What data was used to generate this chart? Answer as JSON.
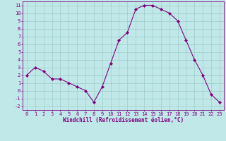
{
  "x": [
    0,
    1,
    2,
    3,
    4,
    5,
    6,
    7,
    8,
    9,
    10,
    11,
    12,
    13,
    14,
    15,
    16,
    17,
    18,
    19,
    20,
    21,
    22,
    23
  ],
  "y": [
    2,
    3,
    2.5,
    1.5,
    1.5,
    1,
    0.5,
    0,
    -1.5,
    0.5,
    3.5,
    6.5,
    7.5,
    10.5,
    11,
    11,
    10.5,
    10,
    9,
    6.5,
    4,
    2,
    -0.5,
    -1.5
  ],
  "line_color": "#800080",
  "marker": "D",
  "marker_size": 2.0,
  "bg_color": "#c0e8e8",
  "grid_color": "#a0cccc",
  "xlabel": "Windchill (Refroidissement éolien,°C)",
  "xlabel_color": "#800080",
  "tick_color": "#800080",
  "spine_color": "#800080",
  "xlim": [
    -0.5,
    23.5
  ],
  "ylim": [
    -2.5,
    11.5
  ],
  "yticks": [
    -2,
    -1,
    0,
    1,
    2,
    3,
    4,
    5,
    6,
    7,
    8,
    9,
    10,
    11
  ],
  "xticks": [
    0,
    1,
    2,
    3,
    4,
    5,
    6,
    7,
    8,
    9,
    10,
    11,
    12,
    13,
    14,
    15,
    16,
    17,
    18,
    19,
    20,
    21,
    22,
    23
  ],
  "tick_fontsize": 5.0,
  "xlabel_fontsize": 5.5
}
